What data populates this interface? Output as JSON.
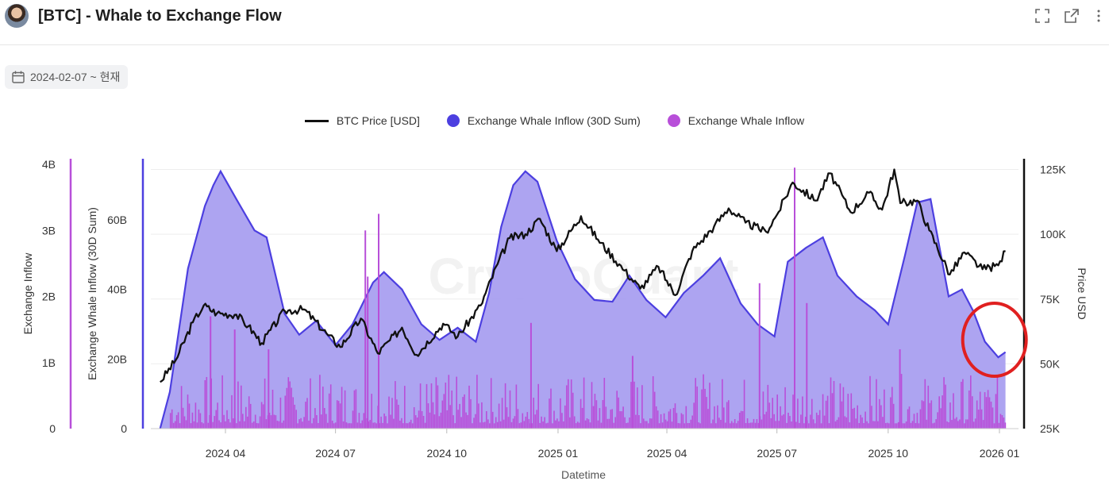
{
  "header": {
    "title": "[BTC] - Whale to Exchange Flow",
    "icons": [
      "avatar",
      "fullscreen-icon",
      "external-link-icon",
      "more-options-icon"
    ]
  },
  "date_filter": {
    "label": "2024-02-07 ~ 현재"
  },
  "legend": {
    "items": [
      {
        "label": "BTC Price [USD]",
        "color": "#111111"
      },
      {
        "label": "Exchange Whale Inflow (30D Sum)",
        "color": "#4c3fe0"
      },
      {
        "label": "Exchange Whale Inflow",
        "color": "#b84fd9"
      }
    ]
  },
  "chart_data": {
    "type": "area",
    "watermark": "CryptoQuant",
    "xlabel": "Datetime",
    "x_ticks": [
      "2024 04",
      "2024 07",
      "2024 10",
      "2025 01",
      "2025 04",
      "2025 07",
      "2025 10",
      "2026 01"
    ],
    "x_range": [
      "2024-02-07",
      "2026-01-10"
    ],
    "axes": {
      "left_outer": {
        "label": "Exchange Inflow",
        "ticks": [
          "0",
          "1B",
          "2B",
          "3B",
          "4B"
        ],
        "range": [
          0,
          4000000000
        ]
      },
      "left_inner": {
        "label": "Exchange Whale Inflow (30D Sum)",
        "ticks": [
          "0",
          "20B",
          "40B",
          "60B"
        ],
        "range": [
          0,
          76000000000
        ]
      },
      "right": {
        "label": "Price USD",
        "ticks": [
          "25K",
          "50K",
          "75K",
          "100K",
          "125K"
        ],
        "range": [
          25000,
          127000
        ]
      }
    },
    "series": [
      {
        "name": "BTC Price [USD]",
        "type": "line",
        "color": "#111111",
        "points": [
          [
            "2024-02-07",
            43000
          ],
          [
            "2024-02-20",
            51500
          ],
          [
            "2024-03-05",
            66000
          ],
          [
            "2024-03-14",
            72500
          ],
          [
            "2024-03-25",
            69500
          ],
          [
            "2024-04-10",
            69000
          ],
          [
            "2024-04-20",
            64500
          ],
          [
            "2024-05-01",
            58000
          ],
          [
            "2024-05-20",
            70500
          ],
          [
            "2024-06-05",
            71000
          ],
          [
            "2024-06-25",
            61000
          ],
          [
            "2024-07-05",
            56500
          ],
          [
            "2024-07-22",
            67500
          ],
          [
            "2024-08-05",
            54000
          ],
          [
            "2024-08-25",
            64000
          ],
          [
            "2024-09-06",
            53500
          ],
          [
            "2024-09-28",
            65500
          ],
          [
            "2024-10-10",
            60500
          ],
          [
            "2024-10-29",
            72500
          ],
          [
            "2024-11-12",
            88500
          ],
          [
            "2024-11-22",
            98500
          ],
          [
            "2024-12-05",
            100000
          ],
          [
            "2024-12-17",
            106000
          ],
          [
            "2024-12-31",
            93500
          ],
          [
            "2025-01-20",
            107000
          ],
          [
            "2025-02-03",
            98000
          ],
          [
            "2025-02-25",
            86000
          ],
          [
            "2025-03-10",
            79000
          ],
          [
            "2025-03-25",
            87500
          ],
          [
            "2025-04-08",
            76500
          ],
          [
            "2025-04-22",
            93500
          ],
          [
            "2025-05-10",
            103000
          ],
          [
            "2025-05-22",
            110000
          ],
          [
            "2025-06-05",
            104500
          ],
          [
            "2025-06-22",
            101000
          ],
          [
            "2025-07-01",
            107500
          ],
          [
            "2025-07-14",
            120000
          ],
          [
            "2025-08-02",
            113000
          ],
          [
            "2025-08-14",
            123500
          ],
          [
            "2025-08-31",
            108500
          ],
          [
            "2025-09-15",
            116000
          ],
          [
            "2025-09-26",
            109500
          ],
          [
            "2025-10-06",
            125000
          ],
          [
            "2025-10-11",
            112000
          ],
          [
            "2025-10-25",
            113000
          ],
          [
            "2025-11-04",
            101500
          ],
          [
            "2025-11-21",
            84500
          ],
          [
            "2025-12-03",
            93000
          ],
          [
            "2025-12-18",
            86500
          ],
          [
            "2025-12-31",
            88000
          ],
          [
            "2026-01-06",
            93500
          ]
        ]
      },
      {
        "name": "Exchange Whale Inflow (30D Sum)",
        "type": "area",
        "color": "#4c3fe0",
        "fill": "#a99ff0",
        "points": [
          [
            "2024-02-07",
            0
          ],
          [
            "2024-02-15",
            10500000000
          ],
          [
            "2024-03-01",
            46000000000
          ],
          [
            "2024-03-15",
            64000000000
          ],
          [
            "2024-03-22",
            70000000000
          ],
          [
            "2024-03-28",
            74000000000
          ],
          [
            "2024-04-10",
            66000000000
          ],
          [
            "2024-04-25",
            57000000000
          ],
          [
            "2024-05-05",
            55000000000
          ],
          [
            "2024-05-20",
            33000000000
          ],
          [
            "2024-06-01",
            27000000000
          ],
          [
            "2024-06-15",
            31000000000
          ],
          [
            "2024-07-01",
            24000000000
          ],
          [
            "2024-07-15",
            30000000000
          ],
          [
            "2024-08-01",
            42000000000
          ],
          [
            "2024-08-10",
            45000000000
          ],
          [
            "2024-08-25",
            40000000000
          ],
          [
            "2024-09-10",
            30000000000
          ],
          [
            "2024-09-25",
            25500000000
          ],
          [
            "2024-10-10",
            29000000000
          ],
          [
            "2024-10-25",
            25000000000
          ],
          [
            "2024-11-05",
            39000000000
          ],
          [
            "2024-11-15",
            58000000000
          ],
          [
            "2024-11-25",
            70000000000
          ],
          [
            "2024-12-05",
            74000000000
          ],
          [
            "2024-12-15",
            71000000000
          ],
          [
            "2024-12-31",
            54000000000
          ],
          [
            "2025-01-15",
            43000000000
          ],
          [
            "2025-01-31",
            37000000000
          ],
          [
            "2025-02-15",
            36500000000
          ],
          [
            "2025-03-01",
            44000000000
          ],
          [
            "2025-03-15",
            37000000000
          ],
          [
            "2025-03-31",
            32000000000
          ],
          [
            "2025-04-15",
            39000000000
          ],
          [
            "2025-05-01",
            44000000000
          ],
          [
            "2025-05-15",
            49000000000
          ],
          [
            "2025-06-01",
            36000000000
          ],
          [
            "2025-06-15",
            30000000000
          ],
          [
            "2025-06-29",
            26500000000
          ],
          [
            "2025-07-10",
            48000000000
          ],
          [
            "2025-07-25",
            52000000000
          ],
          [
            "2025-08-08",
            55000000000
          ],
          [
            "2025-08-20",
            44000000000
          ],
          [
            "2025-09-05",
            38000000000
          ],
          [
            "2025-09-20",
            34000000000
          ],
          [
            "2025-10-01",
            30000000000
          ],
          [
            "2025-10-15",
            50000000000
          ],
          [
            "2025-10-25",
            65000000000
          ],
          [
            "2025-11-05",
            66000000000
          ],
          [
            "2025-11-20",
            38000000000
          ],
          [
            "2025-12-01",
            40000000000
          ],
          [
            "2025-12-10",
            34000000000
          ],
          [
            "2025-12-20",
            25000000000
          ],
          [
            "2025-12-31",
            20500000000
          ],
          [
            "2026-01-06",
            22000000000
          ]
        ]
      },
      {
        "name": "Exchange Whale Inflow",
        "type": "bar",
        "color": "#b84fd9",
        "note_visible": "dense daily bars, typically 0.1B–0.8B, with spikes",
        "spikes": [
          [
            "2024-03-19",
            1700000000
          ],
          [
            "2024-04-08",
            1500000000
          ],
          [
            "2024-05-06",
            1200000000
          ],
          [
            "2024-07-25",
            3000000000
          ],
          [
            "2024-07-27",
            2300000000
          ],
          [
            "2024-08-05",
            3250000000
          ],
          [
            "2024-12-09",
            1600000000
          ],
          [
            "2025-03-03",
            1100000000
          ],
          [
            "2025-06-16",
            2200000000
          ],
          [
            "2025-07-15",
            3950000000
          ],
          [
            "2025-07-25",
            1900000000
          ],
          [
            "2025-10-10",
            1200000000
          ]
        ]
      }
    ],
    "annotations": [
      {
        "type": "circle",
        "color": "#e02020",
        "around": "2025-12-20"
      }
    ]
  }
}
